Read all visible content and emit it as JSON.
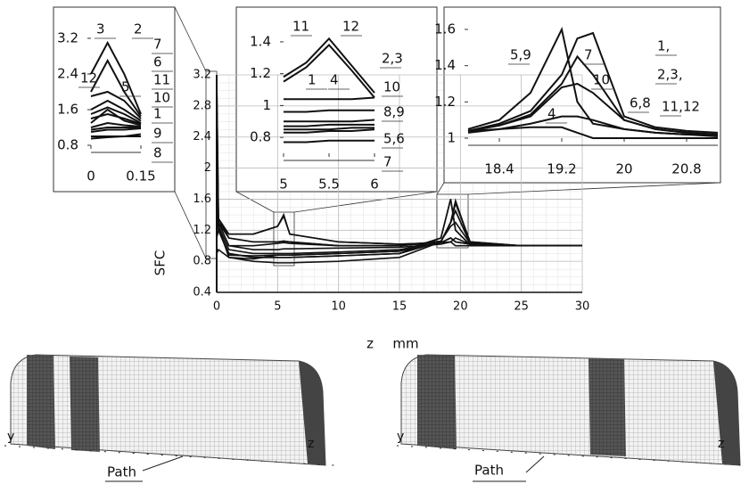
{
  "chart_data": [
    {
      "type": "line",
      "y_label": "SFC",
      "x_label": "z",
      "x_unit": "mm",
      "x": [
        0,
        0.15,
        1,
        3,
        5,
        5.5,
        6,
        10,
        15,
        18.4,
        19.2,
        19.6,
        20.8,
        25,
        30
      ],
      "xlim": [
        0,
        30
      ],
      "xticks": [
        0,
        5,
        10,
        15,
        20,
        25,
        30
      ],
      "ylim": [
        0.4,
        3.2
      ],
      "yticks": [
        0.4,
        0.8,
        1.2,
        1.6,
        2,
        2.4,
        2.8,
        3.2
      ],
      "grid": true,
      "color": "#111111",
      "series": [
        {
          "values": [
            1.4,
            1.3,
            1.0,
            0.95,
            0.95,
            0.96,
            0.96,
            0.97,
            0.98,
            1.02,
            1.05,
            1.1,
            1.02,
            1.0,
            1.0
          ]
        },
        {
          "values": [
            3.2,
            1.3,
            1.1,
            1.05,
            1.05,
            1.06,
            1.05,
            1.0,
            1.0,
            1.05,
            1.3,
            1.55,
            1.05,
            1.0,
            1.0
          ]
        },
        {
          "values": [
            3.2,
            1.35,
            1.1,
            1.05,
            1.05,
            1.06,
            1.05,
            1.0,
            1.0,
            1.05,
            1.3,
            1.55,
            1.05,
            1.0,
            1.0
          ]
        },
        {
          "values": [
            1.3,
            1.25,
            0.95,
            0.9,
            0.9,
            0.9,
            0.9,
            0.92,
            0.95,
            1.04,
            1.05,
            1.0,
            1.0,
            1.0,
            1.0
          ]
        },
        {
          "values": [
            2.0,
            1.2,
            0.9,
            0.85,
            0.85,
            0.85,
            0.85,
            0.87,
            0.9,
            1.1,
            1.6,
            1.2,
            1.01,
            1.0,
            1.0
          ]
        },
        {
          "values": [
            2.7,
            1.2,
            0.9,
            0.85,
            0.85,
            0.85,
            0.85,
            0.87,
            0.9,
            1.05,
            1.3,
            1.45,
            1.03,
            1.0,
            1.0
          ]
        },
        {
          "values": [
            2.8,
            1.25,
            0.85,
            0.8,
            0.78,
            0.78,
            0.78,
            0.8,
            0.85,
            1.05,
            1.3,
            1.58,
            1.04,
            1.0,
            1.0
          ]
        },
        {
          "values": [
            0.9,
            0.95,
            0.85,
            0.83,
            0.88,
            0.88,
            0.88,
            0.9,
            0.93,
            1.05,
            1.3,
            1.45,
            1.03,
            1.0,
            1.0
          ]
        },
        {
          "values": [
            1.1,
            1.2,
            0.88,
            0.87,
            0.88,
            0.88,
            0.88,
            0.9,
            0.93,
            1.1,
            1.6,
            1.2,
            1.01,
            1.0,
            1.0
          ]
        },
        {
          "values": [
            1.6,
            1.3,
            1.0,
            1.0,
            1.03,
            1.04,
            1.03,
            1.0,
            1.0,
            1.06,
            1.25,
            1.3,
            1.03,
            1.0,
            1.0
          ]
        },
        {
          "values": [
            2.2,
            1.35,
            1.15,
            1.15,
            1.25,
            1.38,
            1.15,
            1.05,
            1.02,
            1.04,
            1.1,
            1.05,
            1.02,
            1.0,
            1.0
          ]
        },
        {
          "values": [
            1.8,
            1.3,
            1.15,
            1.15,
            1.25,
            1.4,
            1.15,
            1.05,
            1.02,
            1.04,
            1.1,
            1.05,
            1.02,
            1.0,
            1.0
          ]
        }
      ]
    },
    {
      "type": "line",
      "x": [
        0,
        0.05,
        0.1,
        0.15
      ],
      "xlim": [
        0,
        0.15
      ],
      "xticks": [
        0,
        0.15
      ],
      "ylim": [
        0.8,
        3.2
      ],
      "yticks": [
        0.8,
        1.6,
        2.4,
        3.2
      ],
      "color": "#111111",
      "annotations": [
        "3",
        "2",
        "7",
        "6",
        "11",
        "12",
        "5",
        "10",
        "1",
        "9",
        "8"
      ],
      "series": [
        {
          "values": [
            2.4,
            3.1,
            2.4,
            1.5
          ]
        },
        {
          "values": [
            2.0,
            2.7,
            2.0,
            1.45
          ]
        },
        {
          "values": [
            1.9,
            2.0,
            1.8,
            1.4
          ]
        },
        {
          "values": [
            1.6,
            1.8,
            1.6,
            1.35
          ]
        },
        {
          "values": [
            1.5,
            1.65,
            1.5,
            1.3
          ]
        },
        {
          "values": [
            1.4,
            1.5,
            1.4,
            1.28
          ]
        },
        {
          "values": [
            1.3,
            1.6,
            1.35,
            1.25
          ]
        },
        {
          "values": [
            1.2,
            1.3,
            1.25,
            1.22
          ]
        },
        {
          "values": [
            1.15,
            1.2,
            1.2,
            1.2
          ]
        },
        {
          "values": [
            1.1,
            1.15,
            1.15,
            1.18
          ]
        },
        {
          "values": [
            0.95,
            0.98,
            1.0,
            1.05
          ]
        },
        {
          "values": [
            1.0,
            1.0,
            1.0,
            1.0
          ]
        }
      ]
    },
    {
      "type": "line",
      "x": [
        5,
        5.25,
        5.5,
        5.75,
        6
      ],
      "xlim": [
        5,
        6
      ],
      "xticks": [
        5,
        5.5,
        6
      ],
      "ylim": [
        0.7,
        1.45
      ],
      "yticks": [
        0.8,
        1,
        1.2,
        1.4
      ],
      "color": "#111111",
      "annotations": [
        "11",
        "12",
        "2,3",
        "1",
        "4",
        "10",
        "8,9",
        "5,6",
        "7"
      ],
      "series": [
        {
          "values": [
            1.18,
            1.27,
            1.42,
            1.25,
            1.08
          ]
        },
        {
          "values": [
            1.15,
            1.24,
            1.38,
            1.22,
            1.05
          ]
        },
        {
          "values": [
            1.04,
            1.04,
            1.04,
            1.04,
            1.05
          ]
        },
        {
          "values": [
            0.96,
            0.96,
            0.97,
            0.97,
            0.97
          ]
        },
        {
          "values": [
            0.9,
            0.9,
            0.9,
            0.9,
            0.91
          ]
        },
        {
          "values": [
            0.87,
            0.87,
            0.88,
            0.88,
            0.88
          ]
        },
        {
          "values": [
            0.85,
            0.85,
            0.85,
            0.86,
            0.86
          ]
        },
        {
          "values": [
            0.83,
            0.83,
            0.84,
            0.84,
            0.85
          ]
        },
        {
          "values": [
            0.77,
            0.77,
            0.78,
            0.78,
            0.78
          ]
        }
      ]
    },
    {
      "type": "line",
      "x": [
        18,
        18.4,
        18.8,
        19.2,
        19.4,
        19.6,
        20,
        20.4,
        20.8,
        21.2
      ],
      "xlim": [
        18,
        21.2
      ],
      "xticks": [
        18.4,
        19.2,
        20,
        20.8
      ],
      "ylim": [
        1,
        1.6
      ],
      "yticks": [
        1,
        1.2,
        1.4,
        1.6
      ],
      "color": "#111111",
      "annotations": [
        "5,9",
        "7",
        "1,",
        "2,3,",
        "10",
        "6,8",
        "11,12",
        "4"
      ],
      "series": [
        {
          "values": [
            1.05,
            1.1,
            1.25,
            1.6,
            1.2,
            1.08,
            1.05,
            1.03,
            1.02,
            1.02
          ]
        },
        {
          "values": [
            1.04,
            1.08,
            1.15,
            1.35,
            1.55,
            1.58,
            1.12,
            1.06,
            1.04,
            1.03
          ]
        },
        {
          "values": [
            1.04,
            1.07,
            1.13,
            1.3,
            1.45,
            1.35,
            1.1,
            1.05,
            1.03,
            1.02
          ]
        },
        {
          "values": [
            1.04,
            1.07,
            1.12,
            1.28,
            1.3,
            1.25,
            1.1,
            1.05,
            1.03,
            1.02
          ]
        },
        {
          "values": [
            1.04,
            1.05,
            1.06,
            1.06,
            1.03,
            1.0,
            1.0,
            1.0,
            1.0,
            1.0
          ]
        },
        {
          "values": [
            1.03,
            1.05,
            1.08,
            1.12,
            1.12,
            1.1,
            1.05,
            1.03,
            1.02,
            1.01
          ]
        }
      ]
    }
  ],
  "illustrations": [
    {
      "y_axis": "y",
      "z_axis": "z",
      "path": "Path"
    },
    {
      "y_axis": "y",
      "z_axis": "z",
      "path": "Path"
    }
  ]
}
